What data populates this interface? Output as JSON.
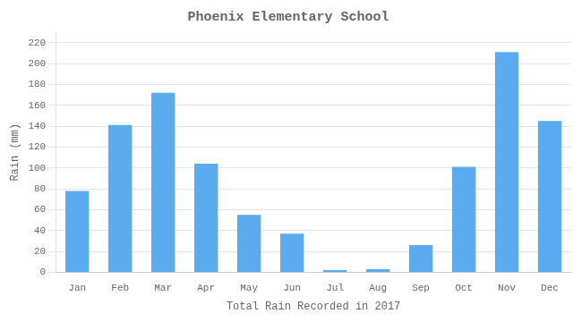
{
  "chart_data": {
    "type": "bar",
    "title": "Phoenix Elementary School",
    "xlabel": "Total Rain Recorded in 2017",
    "ylabel": "Rain (mm)",
    "categories": [
      "Jan",
      "Feb",
      "Mar",
      "Apr",
      "May",
      "Jun",
      "Jul",
      "Aug",
      "Sep",
      "Oct",
      "Nov",
      "Dec"
    ],
    "values": [
      78,
      141,
      172,
      104,
      55,
      37,
      2,
      3,
      26,
      101,
      211,
      145
    ],
    "color": "#5aabf0",
    "ylim": [
      0,
      230
    ],
    "yticks": [
      0,
      20,
      40,
      60,
      80,
      100,
      120,
      140,
      160,
      180,
      200,
      220
    ],
    "grid": true
  }
}
